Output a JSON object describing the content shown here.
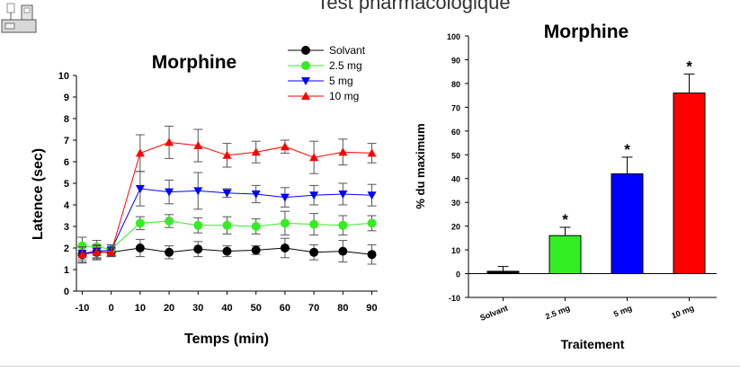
{
  "page": {
    "title": "Test pharmacologique"
  },
  "icon": "lab-apparatus-icon",
  "colors": {
    "solvant": "#000000",
    "mg25": "#33ee22",
    "mg5": "#0000ff",
    "mg10": "#ff0000",
    "axis": "#000000",
    "grid": "#000000"
  },
  "chart_data": [
    {
      "type": "line",
      "title": "Morphine",
      "xlabel": "Temps (min)",
      "ylabel": "Latence (sec)",
      "x": [
        -10,
        -5,
        0,
        10,
        20,
        30,
        40,
        50,
        60,
        70,
        80,
        90
      ],
      "xticks": [
        "-10",
        "0",
        "10",
        "20",
        "30",
        "40",
        "50",
        "60",
        "70",
        "80",
        "90"
      ],
      "yticks": [
        "0",
        "1",
        "2",
        "3",
        "4",
        "5",
        "6",
        "7",
        "8",
        "9",
        "10"
      ],
      "xlim": [
        -12,
        92
      ],
      "ylim": [
        0,
        10
      ],
      "legend": "top-right",
      "series": [
        {
          "name": "Solvant",
          "color": "#000000",
          "marker": "circle",
          "values": [
            1.7,
            1.8,
            1.8,
            2.0,
            1.8,
            1.95,
            1.85,
            1.9,
            2.0,
            1.8,
            1.85,
            1.7
          ],
          "errors": [
            0.4,
            0.35,
            0.2,
            0.4,
            0.3,
            0.35,
            0.25,
            0.2,
            0.45,
            0.35,
            0.5,
            0.45
          ]
        },
        {
          "name": "2.5 mg",
          "color": "#33ee22",
          "marker": "circle",
          "values": [
            2.1,
            2.05,
            1.95,
            3.15,
            3.25,
            3.05,
            3.05,
            3.0,
            3.15,
            3.1,
            3.05,
            3.15
          ],
          "errors": [
            0.4,
            0.3,
            0.2,
            0.3,
            0.3,
            0.35,
            0.4,
            0.35,
            0.55,
            0.5,
            0.45,
            0.35
          ]
        },
        {
          "name": "5 mg",
          "color": "#0000ff",
          "marker": "triangle-down",
          "values": [
            1.75,
            1.85,
            1.9,
            4.75,
            4.6,
            4.65,
            4.55,
            4.5,
            4.35,
            4.45,
            4.5,
            4.45
          ],
          "errors": [
            0.3,
            0.3,
            0.25,
            0.8,
            0.55,
            0.85,
            0.2,
            0.4,
            0.45,
            0.45,
            0.5,
            0.5
          ]
        },
        {
          "name": "10 mg",
          "color": "#ff0000",
          "marker": "triangle-up",
          "values": [
            1.7,
            1.8,
            1.8,
            6.4,
            6.9,
            6.75,
            6.3,
            6.45,
            6.7,
            6.2,
            6.45,
            6.4
          ],
          "errors": [
            0.35,
            0.3,
            0.2,
            0.85,
            0.75,
            0.75,
            0.55,
            0.5,
            0.3,
            0.75,
            0.6,
            0.45
          ]
        }
      ]
    },
    {
      "type": "bar",
      "title": "Morphine",
      "xlabel": "Traitement",
      "ylabel": "% du maximum",
      "categories": [
        "Solvant",
        "2.5 mg",
        "5 mg",
        "10 mg"
      ],
      "values": [
        1,
        16,
        42,
        76
      ],
      "errors": [
        2,
        3.5,
        7,
        8
      ],
      "colors": [
        "#000000",
        "#33ee22",
        "#0000ff",
        "#ff0000"
      ],
      "significance": [
        "",
        "*",
        "*",
        "*"
      ],
      "yticks": [
        "-10",
        "0",
        "10",
        "20",
        "30",
        "40",
        "50",
        "60",
        "70",
        "80",
        "90",
        "100"
      ],
      "ylim": [
        -10,
        100
      ]
    }
  ]
}
